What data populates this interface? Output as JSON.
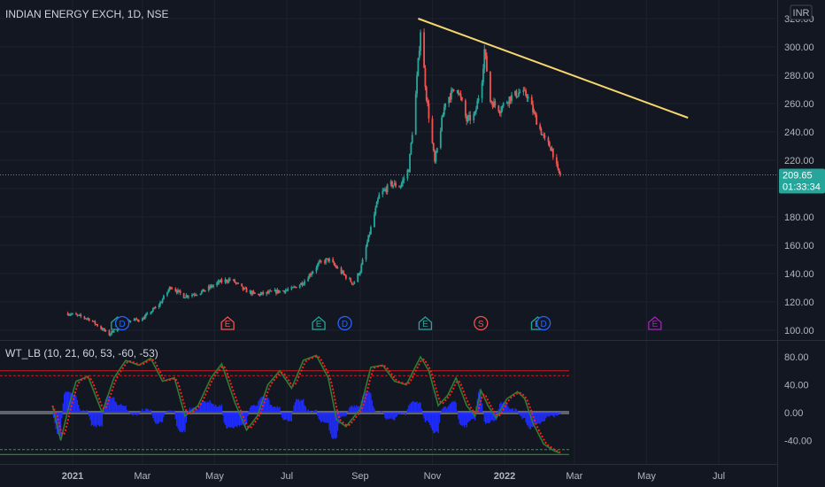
{
  "header": {
    "title": "INDIAN ENERGY EXCH, 1D, NSE",
    "currency": "INR"
  },
  "price_badge": {
    "price": "209.65",
    "countdown": "01:33:34"
  },
  "indicator": {
    "label": "WT_LB (10, 21, 60, 53, -60, -53)"
  },
  "colors": {
    "background": "#131722",
    "grid": "#1e222d",
    "up": "#26a69a",
    "down": "#ef5350",
    "trendline": "#f5d76e",
    "badge": "#26a69a",
    "wt1": "#2e7d32",
    "wt2": "#ff1e1e",
    "hist": "#1f2cff",
    "levels_red": "#d01c1c",
    "levels_green": "#2ca02c",
    "zero": "#9598a1"
  },
  "chart_data": [
    {
      "type": "candlestick",
      "title": "INDIAN ENERGY EXCH, 1D, NSE",
      "y_ticks": [
        "100.00",
        "120.00",
        "140.00",
        "160.00",
        "180.00",
        "200.00",
        "220.00",
        "240.00",
        "260.00",
        "280.00",
        "300.00",
        "320.00"
      ],
      "x_ticks": [
        "2021",
        "Mar",
        "May",
        "Jul",
        "Sep",
        "Nov",
        "2022",
        "Mar",
        "May",
        "Jul"
      ],
      "ylim": [
        95,
        325
      ],
      "last_price": 209.65,
      "anchors": [
        [
          "2020-12-28",
          112
        ],
        [
          "2021-01-15",
          108
        ],
        [
          "2021-02-01",
          97
        ],
        [
          "2021-02-12",
          106
        ],
        [
          "2021-03-01",
          108
        ],
        [
          "2021-03-15",
          118
        ],
        [
          "2021-03-25",
          131
        ],
        [
          "2021-04-05",
          124
        ],
        [
          "2021-04-20",
          127
        ],
        [
          "2021-05-05",
          134
        ],
        [
          "2021-05-15",
          136
        ],
        [
          "2021-05-25",
          129
        ],
        [
          "2021-06-05",
          125
        ],
        [
          "2021-06-20",
          127
        ],
        [
          "2021-07-05",
          129
        ],
        [
          "2021-07-15",
          134
        ],
        [
          "2021-07-28",
          147
        ],
        [
          "2021-08-05",
          150
        ],
        [
          "2021-08-16",
          141
        ],
        [
          "2021-08-26",
          133
        ],
        [
          "2021-09-01",
          142
        ],
        [
          "2021-09-10",
          172
        ],
        [
          "2021-09-17",
          195
        ],
        [
          "2021-09-27",
          203
        ],
        [
          "2021-10-05",
          202
        ],
        [
          "2021-10-12",
          214
        ],
        [
          "2021-10-18",
          266
        ],
        [
          "2021-10-22",
          312
        ],
        [
          "2021-10-27",
          265
        ],
        [
          "2021-11-03",
          218
        ],
        [
          "2021-11-12",
          262
        ],
        [
          "2021-11-22",
          272
        ],
        [
          "2021-11-30",
          248
        ],
        [
          "2021-12-07",
          252
        ],
        [
          "2021-12-13",
          278
        ],
        [
          "2021-12-15",
          298
        ],
        [
          "2021-12-20",
          262
        ],
        [
          "2021-12-28",
          256
        ],
        [
          "2022-01-05",
          264
        ],
        [
          "2022-01-14",
          268
        ],
        [
          "2022-01-20",
          266
        ],
        [
          "2022-01-28",
          248
        ],
        [
          "2022-02-04",
          234
        ],
        [
          "2022-02-10",
          228
        ],
        [
          "2022-02-15",
          212
        ],
        [
          "2022-02-17",
          209.65
        ]
      ],
      "events": [
        {
          "date": "2021-02-08",
          "label": "E",
          "color": "#26a69a"
        },
        {
          "date": "2021-02-12",
          "label": "D",
          "color": "#2962ff"
        },
        {
          "date": "2021-05-12",
          "label": "E",
          "color": "#ef5350"
        },
        {
          "date": "2021-07-28",
          "label": "E",
          "color": "#26a69a"
        },
        {
          "date": "2021-08-19",
          "label": "D",
          "color": "#2962ff"
        },
        {
          "date": "2021-10-26",
          "label": "E",
          "color": "#26a69a"
        },
        {
          "date": "2021-12-12",
          "label": "S",
          "color": "#ef5350"
        },
        {
          "date": "2022-01-29",
          "label": "E",
          "color": "#26a69a"
        },
        {
          "date": "2022-02-03",
          "label": "D",
          "color": "#2962ff"
        },
        {
          "date": "2022-05-08",
          "label": "E",
          "color": "#9c27b0"
        }
      ],
      "trendline": [
        [
          "2021-10-20",
          320
        ],
        [
          "2022-06-05",
          250
        ]
      ]
    },
    {
      "type": "line",
      "title": "WT_LB (10, 21, 60, 53, -60, -53)",
      "y_ticks": [
        "80.00",
        "40.00",
        "0.00",
        "-40.00"
      ],
      "ylim": [
        -70,
        100
      ],
      "levels": [
        60,
        53,
        -53,
        -60
      ],
      "wt1_anchors": [
        [
          "2020-12-15",
          10
        ],
        [
          "2020-12-22",
          -40
        ],
        [
          "2020-12-29",
          10
        ],
        [
          "2021-01-04",
          45
        ],
        [
          "2021-01-14",
          52
        ],
        [
          "2021-01-26",
          0
        ],
        [
          "2021-02-05",
          50
        ],
        [
          "2021-02-15",
          75
        ],
        [
          "2021-02-26",
          68
        ],
        [
          "2021-03-08",
          78
        ],
        [
          "2021-03-18",
          45
        ],
        [
          "2021-03-28",
          50
        ],
        [
          "2021-04-06",
          -5
        ],
        [
          "2021-04-17",
          10
        ],
        [
          "2021-04-28",
          50
        ],
        [
          "2021-05-07",
          70
        ],
        [
          "2021-05-18",
          15
        ],
        [
          "2021-05-28",
          -25
        ],
        [
          "2021-06-06",
          -5
        ],
        [
          "2021-06-15",
          40
        ],
        [
          "2021-06-25",
          60
        ],
        [
          "2021-07-05",
          35
        ],
        [
          "2021-07-15",
          75
        ],
        [
          "2021-07-26",
          82
        ],
        [
          "2021-08-05",
          50
        ],
        [
          "2021-08-12",
          -10
        ],
        [
          "2021-08-20",
          -20
        ],
        [
          "2021-09-01",
          5
        ],
        [
          "2021-09-10",
          65
        ],
        [
          "2021-09-20",
          68
        ],
        [
          "2021-09-30",
          45
        ],
        [
          "2021-10-10",
          40
        ],
        [
          "2021-10-22",
          80
        ],
        [
          "2021-10-29",
          60
        ],
        [
          "2021-11-06",
          10
        ],
        [
          "2021-11-14",
          25
        ],
        [
          "2021-11-21",
          50
        ],
        [
          "2021-11-30",
          10
        ],
        [
          "2021-12-07",
          -5
        ],
        [
          "2021-12-12",
          32
        ],
        [
          "2021-12-18",
          10
        ],
        [
          "2021-12-25",
          -8
        ],
        [
          "2022-01-03",
          20
        ],
        [
          "2022-01-12",
          30
        ],
        [
          "2022-01-18",
          20
        ],
        [
          "2022-01-25",
          -15
        ],
        [
          "2022-02-03",
          -45
        ],
        [
          "2022-02-12",
          -55
        ],
        [
          "2022-02-17",
          -58
        ]
      ]
    }
  ]
}
